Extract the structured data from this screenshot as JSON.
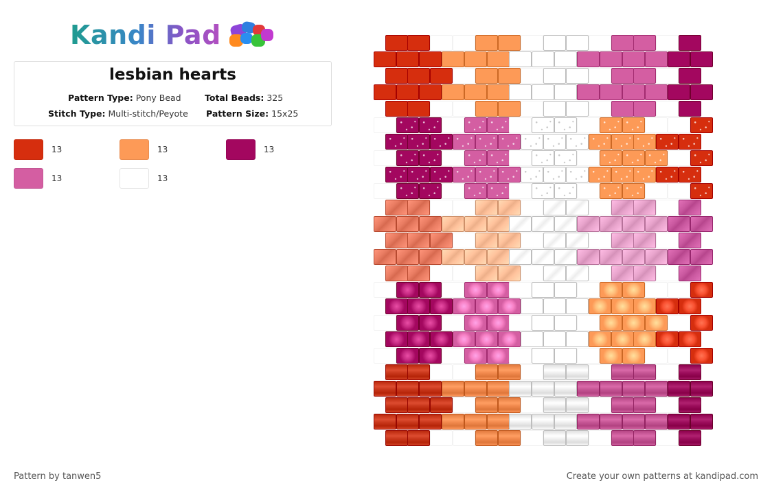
{
  "header": {
    "logo_text": "Kandi Pad",
    "logo_icon": "beads-icon"
  },
  "pattern_info": {
    "title": "lesbian hearts",
    "pattern_type_label": "Pattern Type:",
    "pattern_type": "Pony Bead",
    "total_beads_label": "Total Beads:",
    "total_beads": "325",
    "stitch_type_label": "Stitch Type:",
    "stitch_type": "Multi-stitch/Peyote",
    "pattern_size_label": "Pattern Size:",
    "pattern_size": "15x25"
  },
  "palette": [
    {
      "color": "#d62e0e",
      "count": "13"
    },
    {
      "color": "#fd9a57",
      "count": "13"
    },
    {
      "color": "#a3075f",
      "count": "13"
    },
    {
      "color": "#d45ea2",
      "count": "13"
    },
    {
      "color": "#ffffff",
      "count": "13"
    }
  ],
  "pattern": {
    "columns": 15,
    "rows": 25,
    "heart_colors_by_band": [
      [
        "#d62e0e",
        "#fd9a57",
        "#ffffff",
        "#d45ea2",
        "#a3075f"
      ],
      [
        "#a3075f",
        "#d45ea2",
        "#ffffff",
        "#fd9a57",
        "#d62e0e"
      ],
      [
        "#e97c62",
        "#ffc29c",
        "#ffffff",
        "#e8a4cc",
        "#c9589f"
      ],
      [
        "#a3075f",
        "#d45ea2",
        "#ffffff",
        "#fd9a57",
        "#d62e0e"
      ],
      [
        "#c9381c",
        "#f28a4e",
        "#f0f0f0",
        "#c65695",
        "#9c0d5c"
      ]
    ],
    "band_styles": [
      "solid",
      "sparkle",
      "stripe",
      "dot",
      "banded"
    ]
  },
  "footer": {
    "credit": "Pattern by tanwen5",
    "cta": "Create your own patterns at kandipad.com"
  }
}
